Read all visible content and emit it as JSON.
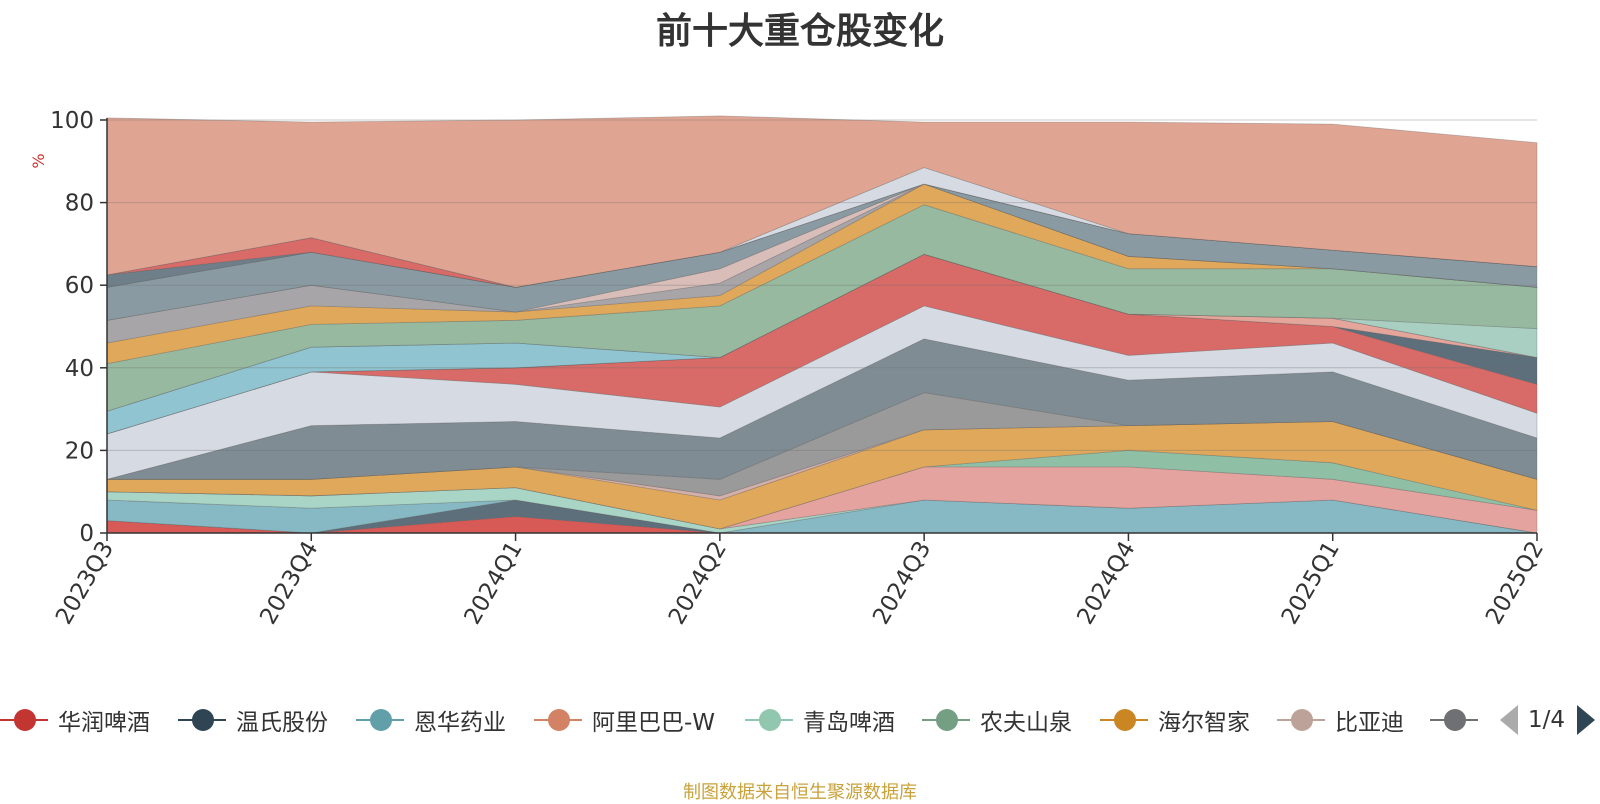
{
  "chart_data": {
    "type": "area",
    "title": "前十大重仓股变化",
    "ylabel": "%",
    "ylim": [
      0,
      100
    ],
    "yticks": [
      0,
      20,
      40,
      60,
      80,
      100
    ],
    "grid": true,
    "stacked": true,
    "categories": [
      "2023Q3",
      "2023Q4",
      "2024Q1",
      "2024Q2",
      "2024Q3",
      "2024Q4",
      "2025Q1",
      "2025Q2"
    ],
    "layers": [
      {
        "color": "#d85a56",
        "values": [
          3,
          0,
          4,
          0,
          0,
          0,
          0,
          0
        ]
      },
      {
        "color": "#5e6f7c",
        "values": [
          0,
          0,
          4,
          0,
          0,
          0,
          0,
          0
        ]
      },
      {
        "color": "#86b9c4",
        "values": [
          5,
          6,
          0,
          0,
          8,
          6,
          8,
          0
        ]
      },
      {
        "color": "#a9d5c6",
        "values": [
          2,
          3,
          3,
          1,
          0,
          0,
          0,
          0
        ]
      },
      {
        "color": "#e5a3a0",
        "values": [
          0,
          0,
          0,
          0,
          8,
          10,
          5,
          5.5
        ]
      },
      {
        "color": "#8fbfa5",
        "values": [
          0,
          0,
          0,
          0,
          0,
          4,
          4,
          0
        ]
      },
      {
        "color": "#e0a85a",
        "values": [
          3,
          4,
          5,
          7,
          9,
          6,
          10,
          7.5
        ]
      },
      {
        "color": "#d4b0ab",
        "values": [
          0,
          0,
          0,
          1,
          0,
          0,
          0,
          0
        ]
      },
      {
        "color": "#9a9a9a",
        "values": [
          0,
          0,
          0,
          4,
          9,
          0,
          0,
          0
        ]
      },
      {
        "color": "#7f8c94",
        "values": [
          0,
          13,
          11,
          10,
          13,
          11,
          12,
          10
        ]
      },
      {
        "color": "#d6dbe3",
        "values": [
          11,
          13,
          9,
          7.5,
          8,
          6,
          7,
          6
        ]
      },
      {
        "color": "#d86b68",
        "values": [
          0,
          0,
          4,
          12,
          12.5,
          10,
          4,
          7
        ]
      },
      {
        "color": "#5e6f7c",
        "values": [
          0,
          0,
          0,
          0,
          0,
          0,
          0,
          6.5
        ]
      },
      {
        "color": "#e4a59b",
        "values": [
          0,
          0,
          0,
          0,
          0,
          0,
          2,
          0
        ]
      },
      {
        "color": "#8fc4d0",
        "values": [
          5.5,
          6,
          6,
          0,
          0,
          0,
          0,
          0
        ]
      },
      {
        "color": "#a8cfc2",
        "values": [
          0,
          0,
          0,
          0,
          0,
          0,
          0,
          7
        ]
      },
      {
        "color": "#97b99f",
        "values": [
          11.5,
          5.5,
          5.5,
          12.5,
          12,
          11,
          12,
          10
        ]
      },
      {
        "color": "#e0a85a",
        "values": [
          5,
          4.5,
          2,
          2.5,
          5,
          3,
          0,
          0
        ]
      },
      {
        "color": "#a7a5a8",
        "values": [
          5.5,
          5,
          0,
          3,
          0,
          0,
          0,
          0
        ]
      },
      {
        "color": "#d9bdb8",
        "values": [
          0,
          0,
          0,
          3.5,
          0,
          0,
          0,
          0
        ]
      },
      {
        "color": "#8a9aa2",
        "values": [
          8,
          8,
          6,
          4,
          0,
          5.5,
          4.5,
          5
        ]
      },
      {
        "color": "#e2a8a3",
        "values": [
          0,
          0,
          0,
          0,
          0,
          0,
          0,
          0
        ]
      },
      {
        "color": "#6f7f8a",
        "values": [
          3,
          0,
          0,
          0,
          0,
          0,
          0,
          0
        ]
      },
      {
        "color": "#d86b68",
        "values": [
          0,
          3.5,
          0,
          0,
          0,
          0,
          0,
          0
        ]
      },
      {
        "color": "#d6dbe3",
        "values": [
          0,
          0,
          0,
          0,
          4,
          0,
          0,
          0
        ]
      },
      {
        "color": "#e0a592",
        "values": [
          38,
          28,
          40.5,
          33,
          11,
          27,
          30.5,
          30
        ]
      }
    ]
  },
  "legend": {
    "items": [
      {
        "label": "华润啤酒",
        "color": "#c23531"
      },
      {
        "label": "温氏股份",
        "color": "#2f4554"
      },
      {
        "label": "恩华药业",
        "color": "#61a0a8"
      },
      {
        "label": "阿里巴巴-W",
        "color": "#d48265"
      },
      {
        "label": "青岛啤酒",
        "color": "#91c7ae"
      },
      {
        "label": "农夫山泉",
        "color": "#749f83"
      },
      {
        "label": "海尔智家",
        "color": "#ca8622"
      },
      {
        "label": "比亚迪",
        "color": "#bda29a"
      },
      {
        "label": "",
        "color": "#6e7074"
      }
    ],
    "page": "1/4"
  },
  "footer": "制图数据来自恒生聚源数据库"
}
